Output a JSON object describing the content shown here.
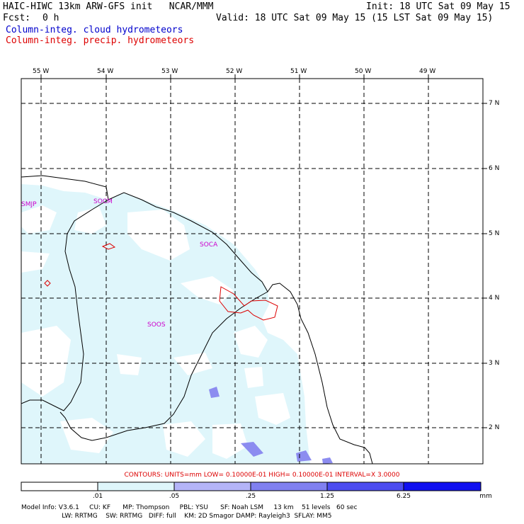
{
  "header": {
    "title": "HAIC-HIWC 13km ARW-GFS init   NCAR/MMM",
    "init": "Init: 18 UTC Sat 09 May 15",
    "fcst_label": "Fcst:",
    "fcst_value": "0 h",
    "valid": "Valid: 18 UTC Sat 09 May 15 (15 LST Sat 09 May 15)"
  },
  "legend": {
    "cloud": "Column-integ. cloud hydrometeors",
    "precip": "Column-integ. precip. hydrometeors",
    "cloud_color": "#0000cc",
    "precip_color": "#dd0000"
  },
  "map": {
    "lon_labels": [
      "55 W",
      "54 W",
      "53 W",
      "52 W",
      "51 W",
      "50 W",
      "49 W"
    ],
    "lat_labels": [
      "7 N",
      "6 N",
      "5 N",
      "4 N",
      "3 N",
      "2 N"
    ],
    "stations": [
      "SMJP",
      "SOCM",
      "SOCA",
      "SOOS"
    ],
    "fill_light": "#dff6fb",
    "fill_medium": "#8c8cf0"
  },
  "contours_note": "CONTOURS:  UNITS=mm  LOW= 0.10000E-01  HIGH= 0.10000E-01  INTERVAL=X  3.0000",
  "colorbar": {
    "labels": [
      ".01",
      ".05",
      ".25",
      "1.25",
      "6.25"
    ],
    "unit": "mm",
    "colors": [
      "#ffffff",
      "#dff6fb",
      "#b4b4f8",
      "#8080f0",
      "#4c4cf0",
      "#1010f0"
    ]
  },
  "model_info": {
    "line1": "Model Info: V3.6.1     CU: KF      MP: Thompson     PBL: YSU      SF: Noah LSM     13 km    51 levels   60 sec",
    "line2": "                    LW: RRTMG    SW: RRTMG   DIFF: full    KM: 2D Smagor DAMP: Rayleigh3  SFLAY: MM5"
  }
}
